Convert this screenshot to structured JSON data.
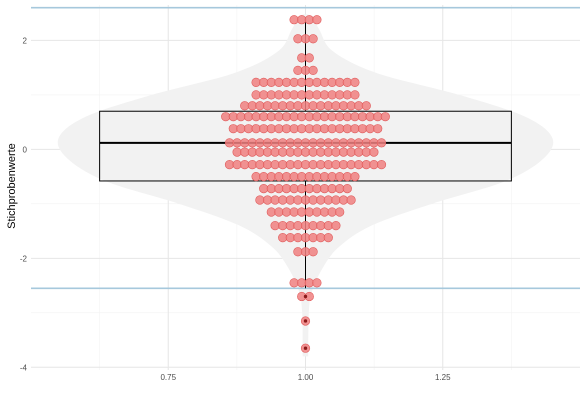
{
  "chart_data": {
    "type": "violin+box+dotplot",
    "ylabel": "Stichprobenwerte",
    "xlabel": "",
    "x_ticks": [
      {
        "value": 0.75,
        "label": "0.75"
      },
      {
        "value": 1.0,
        "label": "1.00"
      },
      {
        "value": 1.25,
        "label": "1.25"
      }
    ],
    "y_ticks": [
      {
        "value": 2,
        "label": "2"
      },
      {
        "value": 0,
        "label": "0"
      },
      {
        "value": -2,
        "label": "-2"
      },
      {
        "value": -4,
        "label": "-4"
      }
    ],
    "xlim": [
      0.5,
      1.5
    ],
    "ylim": [
      -4.05,
      2.65
    ],
    "grid": true,
    "reference_lines_y": [
      2.6,
      -2.55
    ],
    "box": {
      "x_min": 0.625,
      "x_max": 1.375,
      "q1": -0.58,
      "median": 0.12,
      "q3": 0.7,
      "whisker_low": -2.55,
      "whisker_high": 2.4
    },
    "outliers": [
      -2.7,
      -3.15,
      -3.65
    ],
    "dot_rows": [
      {
        "y": 2.38,
        "count": 4
      },
      {
        "y": 2.03,
        "count": 3
      },
      {
        "y": 1.68,
        "count": 2
      },
      {
        "y": 1.45,
        "count": 3
      },
      {
        "y": 1.23,
        "count": 14
      },
      {
        "y": 1.0,
        "count": 14
      },
      {
        "y": 0.8,
        "count": 17
      },
      {
        "y": 0.6,
        "count": 22
      },
      {
        "y": 0.38,
        "count": 20
      },
      {
        "y": 0.12,
        "count": 21
      },
      {
        "y": -0.05,
        "count": 19
      },
      {
        "y": -0.28,
        "count": 21
      },
      {
        "y": -0.5,
        "count": 14
      },
      {
        "y": -0.72,
        "count": 12
      },
      {
        "y": -0.93,
        "count": 13
      },
      {
        "y": -1.15,
        "count": 10
      },
      {
        "y": -1.4,
        "count": 9
      },
      {
        "y": -1.62,
        "count": 7
      },
      {
        "y": -1.88,
        "count": 3
      },
      {
        "y": -2.45,
        "count": 4
      },
      {
        "y": -2.7,
        "count": 2
      },
      {
        "y": -3.15,
        "count": 1
      },
      {
        "y": -3.65,
        "count": 1
      }
    ],
    "violin_profile": [
      {
        "y": -3.8,
        "half_width": 0.005
      },
      {
        "y": -3.0,
        "half_width": 0.006
      },
      {
        "y": -2.6,
        "half_width": 0.012
      },
      {
        "y": -2.2,
        "half_width": 0.03
      },
      {
        "y": -1.8,
        "half_width": 0.06
      },
      {
        "y": -1.4,
        "half_width": 0.12
      },
      {
        "y": -1.0,
        "half_width": 0.23
      },
      {
        "y": -0.6,
        "half_width": 0.36
      },
      {
        "y": -0.2,
        "half_width": 0.43
      },
      {
        "y": 0.2,
        "half_width": 0.45
      },
      {
        "y": 0.6,
        "half_width": 0.4
      },
      {
        "y": 1.0,
        "half_width": 0.28
      },
      {
        "y": 1.4,
        "half_width": 0.13
      },
      {
        "y": 1.8,
        "half_width": 0.05
      },
      {
        "y": 2.2,
        "half_width": 0.025
      },
      {
        "y": 2.45,
        "half_width": 0.01
      }
    ],
    "colors": {
      "dot_fill": "#F08080",
      "dot_stroke": "#E05A5A",
      "violin_fill": "#F2F2F2",
      "box_stroke": "#000000",
      "ref_line": "#A6C8DC",
      "grid_major": "#E6E6E6",
      "grid_minor": "#F2F2F2",
      "outlier_core": "#8B1A1A"
    }
  }
}
